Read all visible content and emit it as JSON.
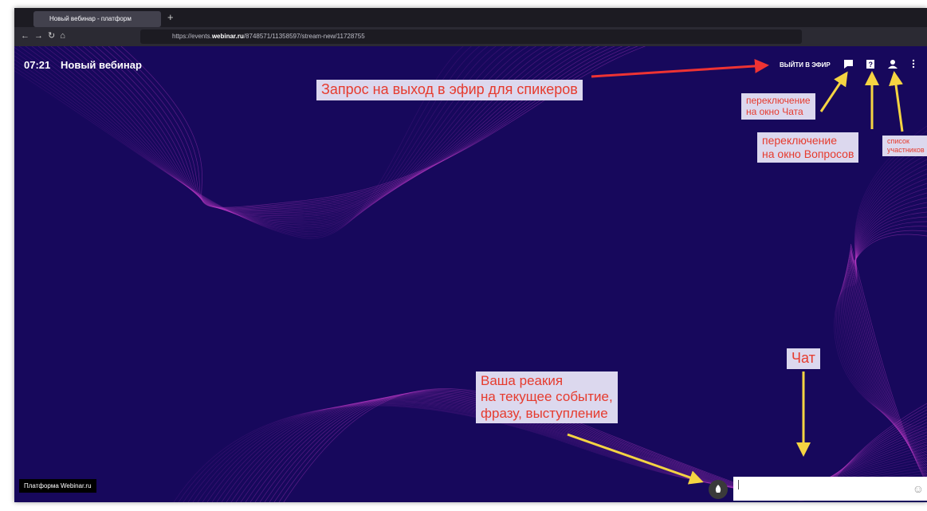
{
  "browser": {
    "tab_title": "Новый вебинар - платформ",
    "url_start": "https://events.",
    "url_domain": "webinar.ru",
    "url_rest": "/8748571/11358597/stream-new/11728755"
  },
  "header": {
    "time": "07:21",
    "title": "Новый вебинар",
    "button": "ВЫЙТИ В ЭФИР"
  },
  "annotations": [
    {
      "lines": [
        "Запрос на выход в эфир для спикеров"
      ]
    },
    {
      "lines": [
        "переключение",
        "на окно Чата"
      ]
    },
    {
      "lines": [
        "переключение",
        "на окно Вопросов"
      ]
    },
    {
      "lines": [
        "список",
        "участников"
      ]
    },
    {
      "lines": [
        "Чат"
      ]
    },
    {
      "lines": [
        "Ваша реакия",
        "на текущее событие,",
        "фразу, выступление"
      ]
    }
  ],
  "footer": {
    "label": "Платформа Webinar.ru"
  }
}
